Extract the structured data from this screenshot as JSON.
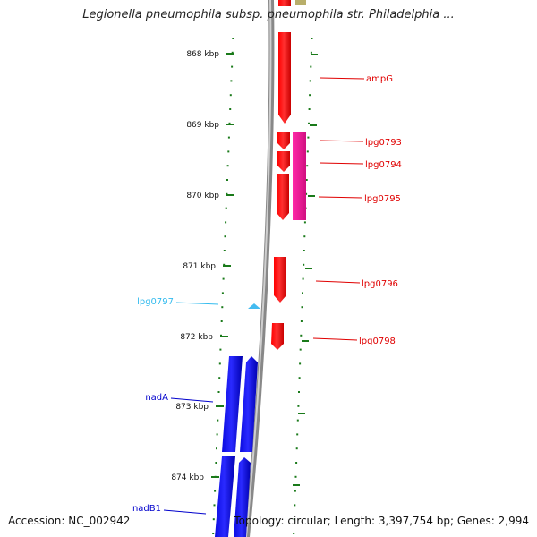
{
  "title": "Legionella pneumophila subsp. pneumophila str. Philadelphia ...",
  "ruler": [
    {
      "label": "868 kbp"
    },
    {
      "label": "869 kbp"
    },
    {
      "label": "870 kbp"
    },
    {
      "label": "871 kbp"
    },
    {
      "label": "872 kbp"
    },
    {
      "label": "873 kbp"
    },
    {
      "label": "874 kbp"
    }
  ],
  "genes": [
    {
      "name": "ampG",
      "color": "#e00000"
    },
    {
      "name": "lpg0793",
      "color": "#e00000"
    },
    {
      "name": "lpg0794",
      "color": "#e00000"
    },
    {
      "name": "lpg0795",
      "color": "#e00000"
    },
    {
      "name": "lpg0796",
      "color": "#e00000"
    },
    {
      "name": "lpg0797",
      "color": "#33bbee"
    },
    {
      "name": "lpg0798",
      "color": "#e00000"
    },
    {
      "name": "nadA",
      "color": "#0000cc"
    },
    {
      "name": "nadB1",
      "color": "#0000cc"
    }
  ],
  "colors": {
    "forward_strand": "#ff0000",
    "reverse_strand": "#1010ee",
    "other_feature": "#ee1199",
    "rna": "#55c8f0",
    "tick": "#1a7a1a",
    "backbone": "#8a8a8a"
  },
  "footer": {
    "accession": "Accession: NC_002942",
    "summary": "Topology: circular; Length: 3,397,754 bp; Genes: 2,994"
  }
}
